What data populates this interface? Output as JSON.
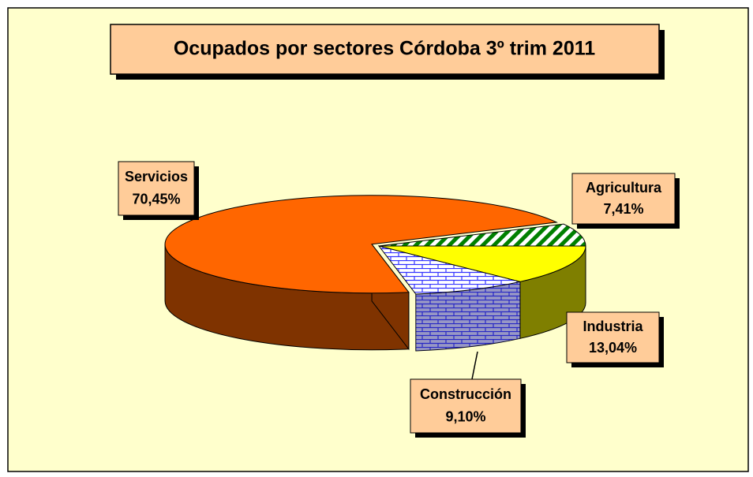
{
  "chart_data": {
    "type": "pie",
    "title": "Ocupados por sectores Córdoba 3º trim 2011",
    "categories": [
      "Agricultura",
      "Industria",
      "Construcción",
      "Servicios"
    ],
    "values": [
      7.41,
      13.04,
      9.1,
      70.45
    ],
    "value_labels": [
      "7,41%",
      "13,04%",
      "9,10%",
      "70,45%"
    ],
    "colors": [
      "#008000",
      "#ffff00",
      "#3333ff",
      "#ff6600"
    ],
    "patterns": [
      "stripes",
      null,
      "bricks",
      null
    ]
  }
}
